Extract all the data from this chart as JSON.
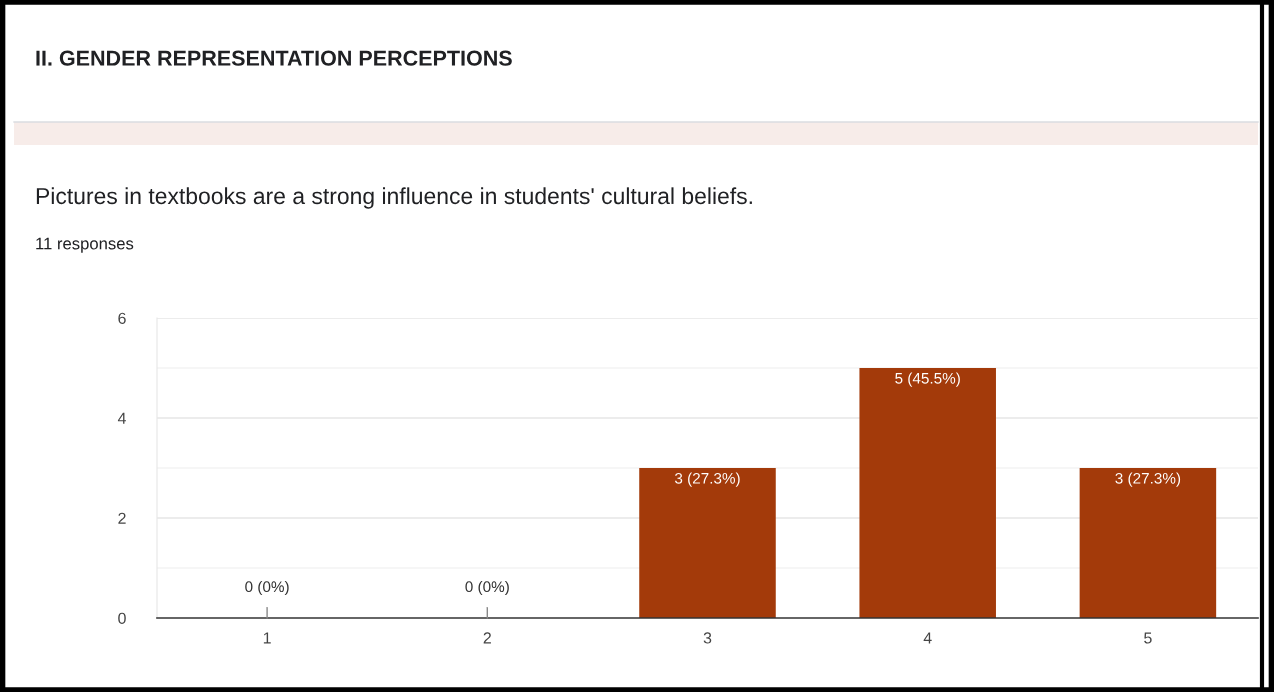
{
  "chart_data": {
    "type": "bar",
    "title": "II. GENDER REPRESENTATION PERCEPTIONS",
    "subtitle": "Pictures in textbooks are a strong influence in students' cultural beliefs.",
    "annotations": [
      "11 responses"
    ],
    "categories": [
      "1",
      "2",
      "3",
      "4",
      "5"
    ],
    "values": [
      0,
      0,
      3,
      5,
      3
    ],
    "color": "#a33a0a",
    "value_labels": [
      "0 (0%)",
      "0 (0%)",
      "3 (27.3%)",
      "5 (45.5%)",
      "3 (27.3%)"
    ],
    "ylim": [
      0,
      6
    ],
    "yticks": [
      0,
      {
        "value": 1,
        "label": null
      },
      2,
      {
        "value": 3,
        "label": null
      },
      4,
      {
        "value": 5,
        "label": null
      },
      6
    ],
    "grid": "y"
  }
}
